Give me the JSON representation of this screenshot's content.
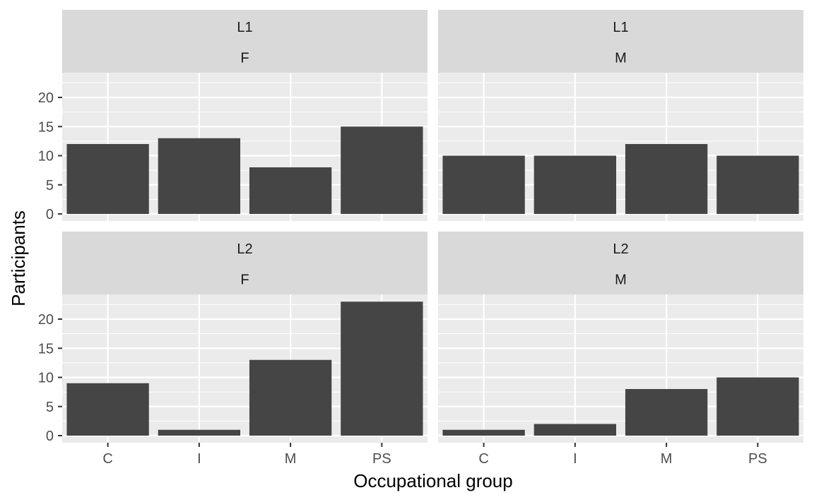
{
  "chart_data": {
    "type": "bar",
    "facet_rows": [
      "L1",
      "L2"
    ],
    "facet_cols": [
      "F",
      "M"
    ],
    "categories": [
      "C",
      "I",
      "M",
      "PS"
    ],
    "panels": [
      {
        "row": "L1",
        "col": "F",
        "values": [
          12,
          13,
          8,
          15
        ]
      },
      {
        "row": "L1",
        "col": "M",
        "values": [
          10,
          10,
          12,
          10
        ]
      },
      {
        "row": "L2",
        "col": "F",
        "values": [
          9,
          1,
          13,
          23
        ]
      },
      {
        "row": "L2",
        "col": "M",
        "values": [
          1,
          2,
          8,
          10
        ]
      }
    ],
    "ylim": [
      0,
      25
    ],
    "yticks": [
      0,
      5,
      10,
      15,
      20
    ],
    "xlabel": "Occupational group",
    "ylabel": "Participants",
    "grid": true,
    "colors": {
      "bar": "#454545",
      "panel": "#ebebeb",
      "strip": "#d9d9d9",
      "grid": "#ffffff"
    }
  }
}
